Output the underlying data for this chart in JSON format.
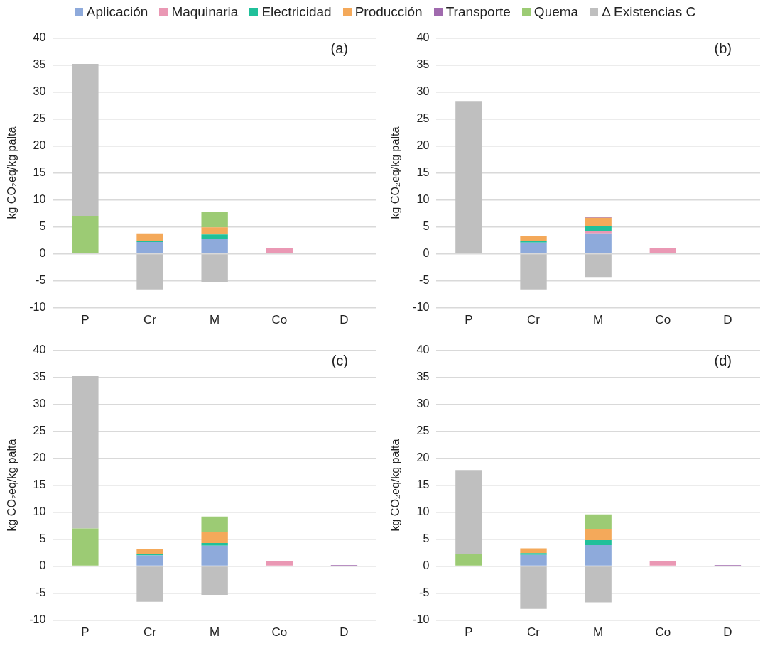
{
  "chart_data": [
    {
      "type": "bar",
      "stacked": true,
      "legend": "top",
      "grid": "y",
      "ylabel": "kg CO₂eq/kg palta",
      "annotations": [
        "(a)"
      ],
      "categories": [
        "P",
        "Cr",
        "M",
        "Co",
        "D"
      ],
      "ylim": [
        -10,
        40
      ],
      "yticks": [
        -10,
        -5,
        0,
        5,
        10,
        15,
        20,
        25,
        30,
        35,
        40
      ],
      "series": [
        {
          "name": "Aplicación",
          "color": "#8eaadb",
          "values": [
            null,
            2.2,
            2.7,
            null,
            null
          ]
        },
        {
          "name": "Maquinaria",
          "color": "#ea98b4",
          "values": [
            null,
            null,
            null,
            1.0,
            null
          ]
        },
        {
          "name": "Electricidad",
          "color": "#20c09a",
          "values": [
            null,
            0.2,
            0.9,
            null,
            null
          ]
        },
        {
          "name": "Producción",
          "color": "#f4a95a",
          "values": [
            null,
            1.4,
            1.3,
            null,
            null
          ]
        },
        {
          "name": "Transporte",
          "color": "#a06aae",
          "values": [
            null,
            null,
            null,
            null,
            0.2
          ]
        },
        {
          "name": "Quema",
          "color": "#9ccb74",
          "values": [
            7.0,
            null,
            2.8,
            null,
            null
          ]
        },
        {
          "name": "Δ Existencias C",
          "color": "#bfbfbf",
          "values": [
            28.2,
            -6.6,
            -5.3,
            null,
            null
          ]
        }
      ]
    },
    {
      "type": "bar",
      "stacked": true,
      "grid": "y",
      "ylabel": "kg CO₂eq/kg palta",
      "annotations": [
        "(b)"
      ],
      "categories": [
        "P",
        "Cr",
        "M",
        "Co",
        "D"
      ],
      "ylim": [
        -10,
        40
      ],
      "yticks": [
        -10,
        -5,
        0,
        5,
        10,
        15,
        20,
        25,
        30,
        35,
        40
      ],
      "series": [
        {
          "color": "#8eaadb",
          "values": [
            null,
            2.1,
            3.8,
            null,
            null
          ]
        },
        {
          "color": "#ea98b4",
          "values": [
            null,
            null,
            0.5,
            1.0,
            null
          ]
        },
        {
          "color": "#20c09a",
          "values": [
            null,
            0.2,
            0.9,
            null,
            null
          ]
        },
        {
          "color": "#f4a95a",
          "values": [
            null,
            1.0,
            1.5,
            null,
            null
          ]
        },
        {
          "color": "#a06aae",
          "values": [
            null,
            null,
            0.1,
            null,
            0.2
          ]
        },
        {
          "color": "#9ccb74",
          "values": [
            null,
            null,
            null,
            null,
            null
          ]
        },
        {
          "color": "#bfbfbf",
          "values": [
            28.2,
            -6.6,
            -4.3,
            null,
            null
          ]
        }
      ]
    },
    {
      "type": "bar",
      "stacked": true,
      "grid": "y",
      "ylabel": "kg CO₂eq/kg palta",
      "annotations": [
        "(c)"
      ],
      "categories": [
        "P",
        "Cr",
        "M",
        "Co",
        "D"
      ],
      "ylim": [
        -10,
        40
      ],
      "yticks": [
        -10,
        -5,
        0,
        5,
        10,
        15,
        20,
        25,
        30,
        35,
        40
      ],
      "series": [
        {
          "color": "#8eaadb",
          "values": [
            null,
            2.0,
            3.8,
            null,
            null
          ]
        },
        {
          "color": "#ea98b4",
          "values": [
            null,
            null,
            null,
            1.0,
            null
          ]
        },
        {
          "color": "#20c09a",
          "values": [
            null,
            0.2,
            0.5,
            null,
            null
          ]
        },
        {
          "color": "#f4a95a",
          "values": [
            null,
            1.0,
            2.1,
            null,
            null
          ]
        },
        {
          "color": "#a06aae",
          "values": [
            null,
            null,
            null,
            null,
            0.2
          ]
        },
        {
          "color": "#9ccb74",
          "values": [
            7.0,
            null,
            2.8,
            null,
            null
          ]
        },
        {
          "color": "#bfbfbf",
          "values": [
            28.2,
            -6.6,
            -5.3,
            null,
            null
          ]
        }
      ]
    },
    {
      "type": "bar",
      "stacked": true,
      "grid": "y",
      "ylabel": "kg CO₂eq/kg palta",
      "annotations": [
        "(d)"
      ],
      "categories": [
        "P",
        "Cr",
        "M",
        "Co",
        "D"
      ],
      "ylim": [
        -10,
        40
      ],
      "yticks": [
        -10,
        -5,
        0,
        5,
        10,
        15,
        20,
        25,
        30,
        35,
        40
      ],
      "series": [
        {
          "color": "#8eaadb",
          "values": [
            null,
            2.1,
            3.9,
            null,
            null
          ]
        },
        {
          "color": "#ea98b4",
          "values": [
            null,
            null,
            null,
            1.0,
            null
          ]
        },
        {
          "color": "#20c09a",
          "values": [
            null,
            0.3,
            0.9,
            null,
            null
          ]
        },
        {
          "color": "#f4a95a",
          "values": [
            null,
            0.9,
            2.0,
            null,
            null
          ]
        },
        {
          "color": "#a06aae",
          "values": [
            null,
            null,
            null,
            null,
            0.2
          ]
        },
        {
          "color": "#9ccb74",
          "values": [
            2.2,
            null,
            2.8,
            null,
            null
          ]
        },
        {
          "color": "#bfbfbf",
          "values": [
            15.6,
            -7.9,
            -6.7,
            null,
            null
          ]
        }
      ]
    }
  ]
}
